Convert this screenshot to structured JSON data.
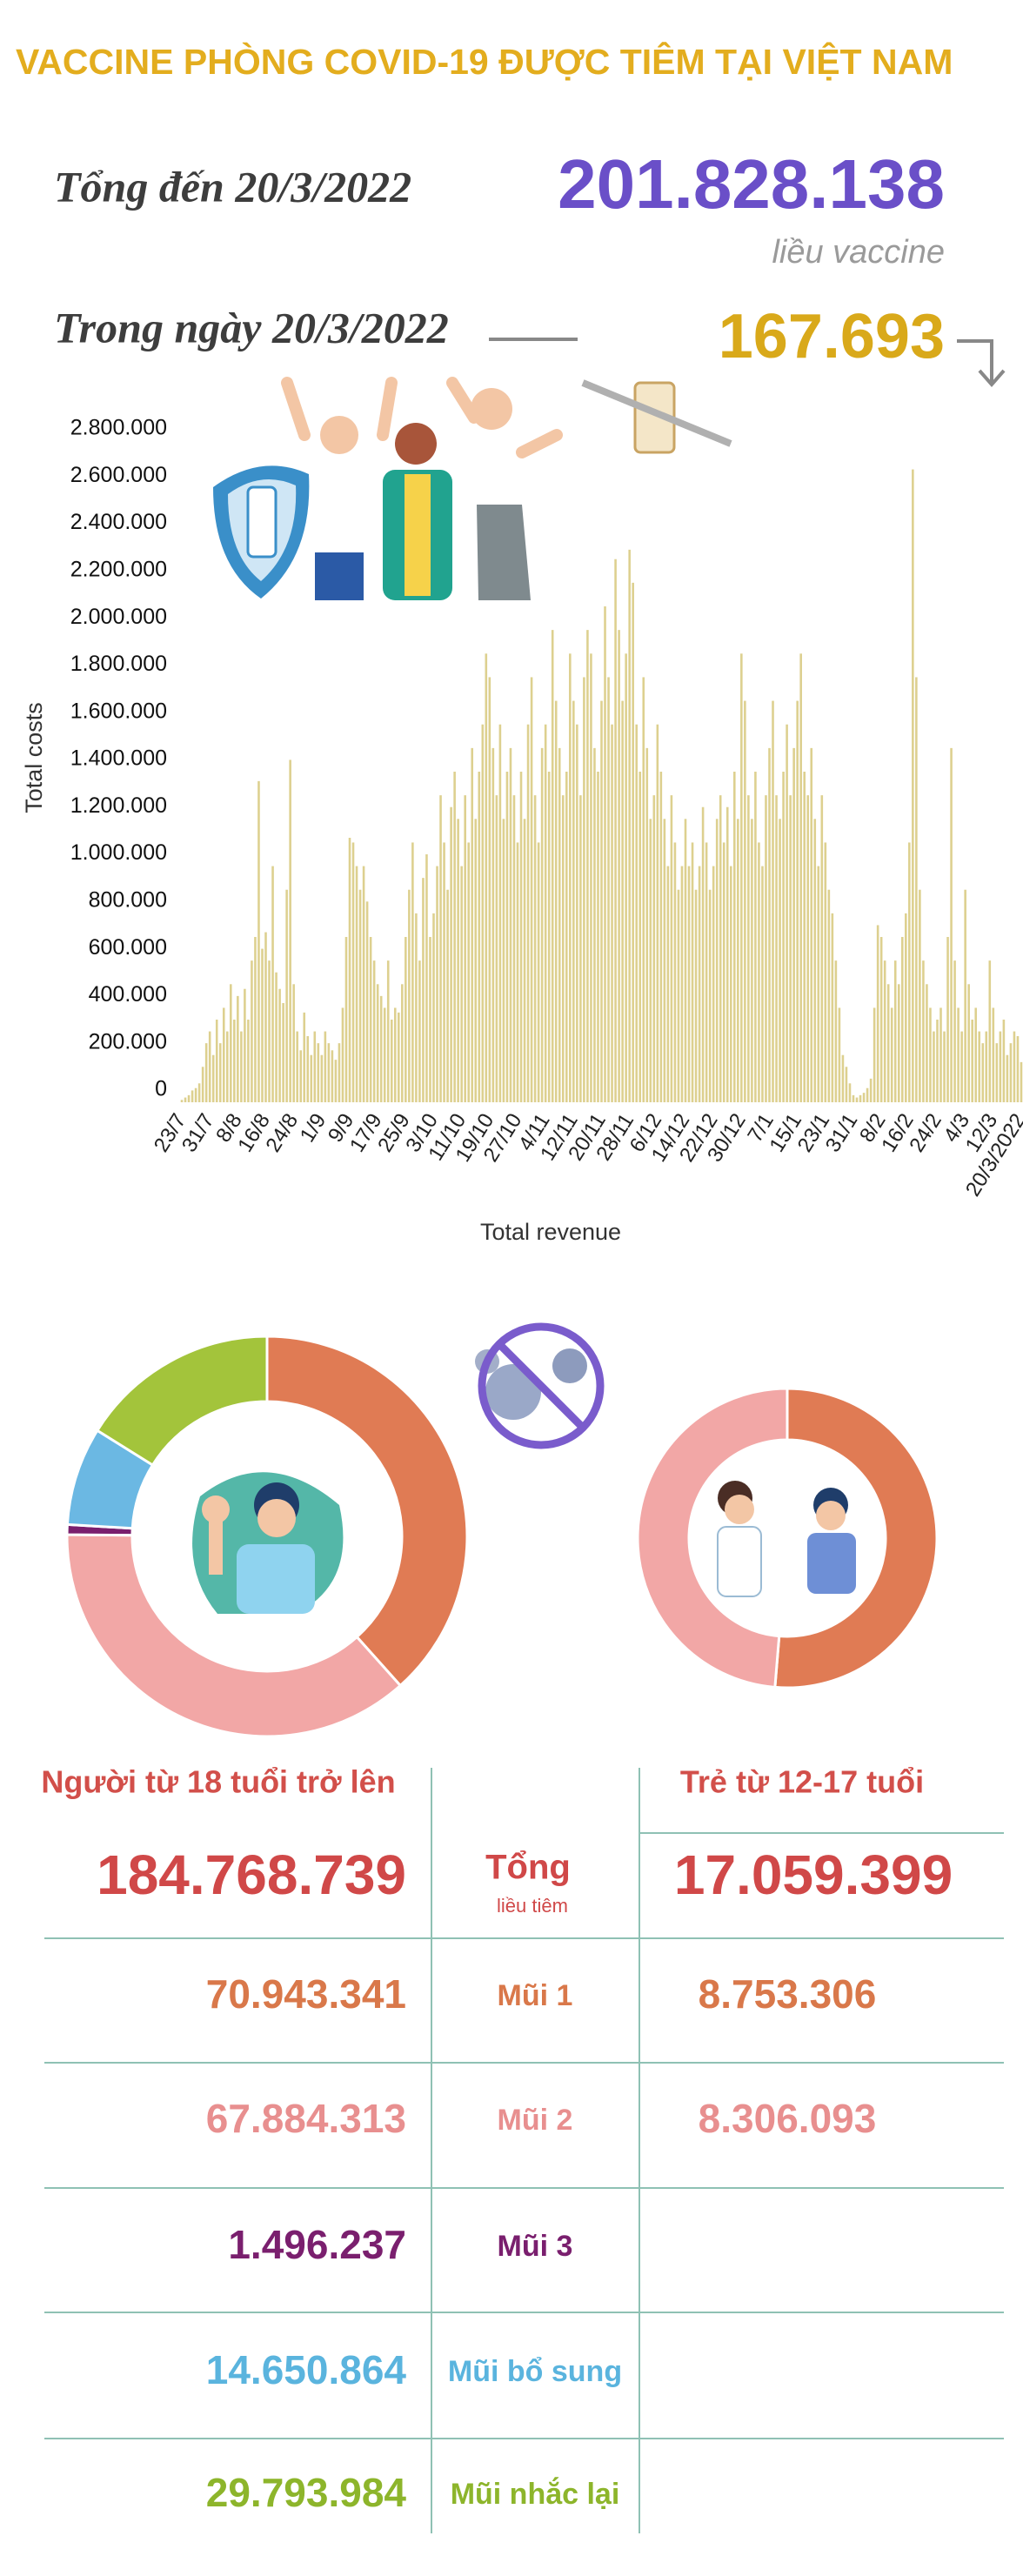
{
  "header": {
    "title": "VACCINE PHÒNG COVID-19 ĐƯỢC TIÊM TẠI VIỆT NAM",
    "total_label": "Tổng đến 20/3/2022",
    "total_value": "201.828.138",
    "total_unit": "liều vaccine",
    "day_label": "Trong ngày 20/3/2022",
    "day_value": "167.693"
  },
  "chart_data": [
    {
      "type": "bar",
      "y_label": "Total costs",
      "x_label": "Total revenue",
      "color": "#ddd08f",
      "ylim": [
        0,
        2800000
      ],
      "yticks": [
        0,
        {
          "value": 200000,
          "label": "200.000"
        },
        {
          "value": 400000,
          "label": "400.000"
        },
        {
          "value": 600000,
          "label": "600.000"
        },
        {
          "value": 800000,
          "label": "800.000"
        },
        {
          "value": 1000000,
          "label": "1.000.000"
        },
        {
          "value": 1200000,
          "label": "1.200.000"
        },
        {
          "value": 1400000,
          "label": "1.400.000"
        },
        {
          "value": 1600000,
          "label": "1.600.000"
        },
        {
          "value": 1800000,
          "label": "1.800.000"
        },
        {
          "value": 2000000,
          "label": "2.000.000"
        },
        {
          "value": 2200000,
          "label": "2.200.000"
        },
        {
          "value": 2400000,
          "label": "2.400.000"
        },
        {
          "value": 2600000,
          "label": "2.600.000"
        },
        {
          "value": 2800000,
          "label": "2.800.000"
        }
      ],
      "categories": [
        "23/7",
        null,
        null,
        null,
        null,
        null,
        null,
        null,
        "31/7",
        null,
        null,
        null,
        null,
        null,
        null,
        null,
        "8/8",
        null,
        null,
        null,
        null,
        null,
        null,
        null,
        "16/8",
        null,
        null,
        null,
        null,
        null,
        null,
        null,
        "24/8",
        null,
        null,
        null,
        null,
        null,
        null,
        null,
        "1/9",
        null,
        null,
        null,
        null,
        null,
        null,
        null,
        "9/9",
        null,
        null,
        null,
        null,
        null,
        null,
        null,
        "17/9",
        null,
        null,
        null,
        null,
        null,
        null,
        null,
        "25/9",
        null,
        null,
        null,
        null,
        null,
        null,
        null,
        "3/10",
        null,
        null,
        null,
        null,
        null,
        null,
        null,
        "11/10",
        null,
        null,
        null,
        null,
        null,
        null,
        null,
        "19/10",
        null,
        null,
        null,
        null,
        null,
        null,
        null,
        "27/10",
        null,
        null,
        null,
        null,
        null,
        null,
        null,
        "4/11",
        null,
        null,
        null,
        null,
        null,
        null,
        null,
        "12/11",
        null,
        null,
        null,
        null,
        null,
        null,
        null,
        "20/11",
        null,
        null,
        null,
        null,
        null,
        null,
        null,
        "28/11",
        null,
        null,
        null,
        null,
        null,
        null,
        null,
        "6/12",
        null,
        null,
        null,
        null,
        null,
        null,
        null,
        "14/12",
        null,
        null,
        null,
        null,
        null,
        null,
        null,
        "22/12",
        null,
        null,
        null,
        null,
        null,
        null,
        null,
        "30/12",
        null,
        null,
        null,
        null,
        null,
        null,
        null,
        "7/1",
        null,
        null,
        null,
        null,
        null,
        null,
        null,
        "15/1",
        null,
        null,
        null,
        null,
        null,
        null,
        null,
        "23/1",
        null,
        null,
        null,
        null,
        null,
        null,
        null,
        "31/1",
        null,
        null,
        null,
        null,
        null,
        null,
        null,
        "8/2",
        null,
        null,
        null,
        null,
        null,
        null,
        null,
        "16/2",
        null,
        null,
        null,
        null,
        null,
        null,
        null,
        "24/2",
        null,
        null,
        null,
        null,
        null,
        null,
        null,
        "4/3",
        null,
        null,
        null,
        null,
        null,
        null,
        null,
        "12/3",
        null,
        null,
        null,
        null,
        null,
        null,
        null,
        "20/3/2022"
      ],
      "values": [
        10000,
        20000,
        30000,
        50000,
        60000,
        80000,
        150000,
        250000,
        300000,
        200000,
        350000,
        250000,
        400000,
        300000,
        500000,
        350000,
        450000,
        300000,
        480000,
        350000,
        600000,
        700000,
        1360000,
        650000,
        720000,
        600000,
        1000000,
        550000,
        480000,
        420000,
        900000,
        1450000,
        500000,
        300000,
        220000,
        380000,
        280000,
        200000,
        300000,
        250000,
        200000,
        300000,
        250000,
        220000,
        180000,
        250000,
        400000,
        700000,
        1120000,
        1100000,
        1000000,
        900000,
        1000000,
        850000,
        700000,
        600000,
        500000,
        450000,
        400000,
        600000,
        350000,
        400000,
        380000,
        500000,
        700000,
        900000,
        1100000,
        800000,
        600000,
        950000,
        1050000,
        700000,
        800000,
        1000000,
        1300000,
        1100000,
        900000,
        1250000,
        1400000,
        1200000,
        1000000,
        1300000,
        1100000,
        1500000,
        1200000,
        1400000,
        1600000,
        1900000,
        1800000,
        1500000,
        1300000,
        1600000,
        1200000,
        1400000,
        1500000,
        1300000,
        1100000,
        1400000,
        1200000,
        1600000,
        1800000,
        1300000,
        1100000,
        1500000,
        1600000,
        1400000,
        2000000,
        1700000,
        1500000,
        1300000,
        1400000,
        1900000,
        1700000,
        1600000,
        1300000,
        1800000,
        2000000,
        1900000,
        1500000,
        1400000,
        1700000,
        2100000,
        1800000,
        1600000,
        2300000,
        2000000,
        1700000,
        1900000,
        2340000,
        2200000,
        1600000,
        1400000,
        1800000,
        1500000,
        1200000,
        1300000,
        1600000,
        1400000,
        1200000,
        1000000,
        1300000,
        1100000,
        900000,
        1000000,
        1200000,
        1000000,
        1100000,
        900000,
        1000000,
        1250000,
        1100000,
        900000,
        1000000,
        1200000,
        1300000,
        1100000,
        1250000,
        1000000,
        1400000,
        1200000,
        1900000,
        1700000,
        1300000,
        1200000,
        1400000,
        1100000,
        1000000,
        1300000,
        1500000,
        1700000,
        1300000,
        1200000,
        1400000,
        1600000,
        1300000,
        1500000,
        1700000,
        1900000,
        1400000,
        1300000,
        1500000,
        1200000,
        1000000,
        1300000,
        1100000,
        900000,
        800000,
        600000,
        400000,
        200000,
        150000,
        80000,
        30000,
        20000,
        30000,
        40000,
        60000,
        100000,
        400000,
        750000,
        700000,
        600000,
        500000,
        400000,
        600000,
        500000,
        700000,
        800000,
        1100000,
        2680000,
        1800000,
        900000,
        600000,
        500000,
        400000,
        300000,
        350000,
        400000,
        300000,
        700000,
        1500000,
        600000,
        400000,
        300000,
        900000,
        500000,
        350000,
        400000,
        300000,
        250000,
        300000,
        600000,
        400000,
        250000,
        300000,
        350000,
        200000,
        250000,
        300000,
        280000,
        170000
      ]
    },
    {
      "type": "pie",
      "values": [
        70943341,
        67884313,
        1496237,
        14650864,
        29793984
      ],
      "colors": [
        "#e07b54",
        "#f2a7a6",
        "#7a1f6e",
        "#6bb8e3",
        "#a3c43b"
      ]
    },
    {
      "type": "pie",
      "values": [
        8753306,
        8306093
      ],
      "colors": [
        "#e07b54",
        "#f2a7a6"
      ]
    }
  ],
  "table": {
    "col_adult": "Người từ 18 tuổi trở lên",
    "col_teen": "Trẻ từ 12-17 tuổi",
    "rows": [
      {
        "label": "Tổng",
        "sublabel": "liều tiêm",
        "adult": "184.768.739",
        "teen": "17.059.399"
      },
      {
        "label": "Mũi 1",
        "adult": "70.943.341",
        "teen": "8.753.306"
      },
      {
        "label": "Mũi 2",
        "adult": "67.884.313",
        "teen": "8.306.093"
      },
      {
        "label": "Mũi 3",
        "adult": "1.496.237"
      },
      {
        "label": "Mũi bổ sung",
        "adult": "14.650.864"
      },
      {
        "label": "Mũi nhắc lại",
        "adult": "29.793.984"
      }
    ]
  }
}
